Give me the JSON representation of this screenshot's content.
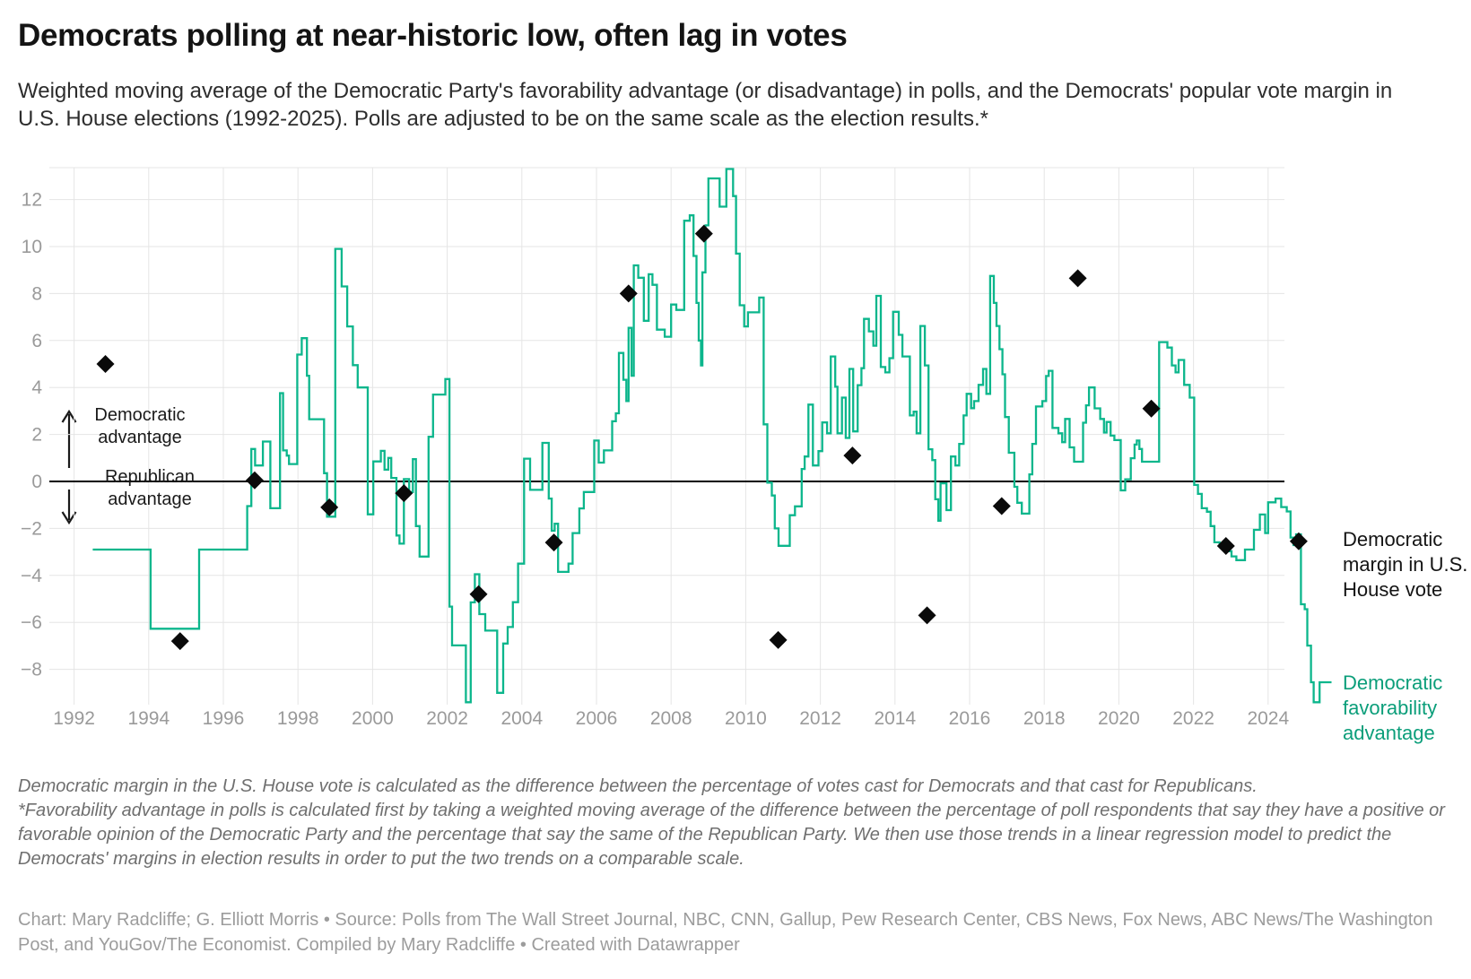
{
  "title": "Democrats polling at near-historic low, often lag in votes",
  "subtitle": "Weighted moving average of the Democratic Party's favorability advantage (or disadvantage) in polls, and the Democrats' popular vote margin in U.S. House elections (1992-2025). Polls are adjusted to be on the same scale as the election results.*",
  "annotations": {
    "democratic": "Democratic advantage",
    "republican": "Republican advantage"
  },
  "series_labels": {
    "house": "Democratic margin in U.S. House vote",
    "favorability": "Democratic favorability advantage"
  },
  "notes": {
    "margin_note": "Democratic margin in the U.S. House vote is calculated as the difference between the percentage of votes cast for Democrats and that cast for Republicans.",
    "favorability_note": "*Favorability advantage in polls is calculated first by taking a weighted moving average of the difference between the percentage of poll respondents that say they have a positive or favorable opinion of the Democratic Party and the percentage that say the same of the Republican Party. We then use those trends in a linear regression model to predict the Democrats' margins in election results in order to put the two trends on a comparable scale.",
    "credit": "Chart: Mary Radcliffe; G. Elliott Morris • Source: Polls from The Wall Street Journal, NBC, CNN, Gallup, Pew Research Center, CBS News, Fox News, ABC News/The Washington Post, and YouGov/The Economist. Compiled by Mary Radcliffe • Created with Datawrapper"
  },
  "colors": {
    "favorability_line": "#0cb68c",
    "favorability_label": "#0b9e7a",
    "house_marker": "#0a0a0a",
    "gridline": "#e5e5e5",
    "zero_line": "#000000",
    "tick_label": "#9a9a9a"
  },
  "chart_data": {
    "type": "line",
    "title": "Democratic favorability advantage vs. House vote margin",
    "xlabel": "",
    "ylabel": "",
    "xlim": [
      1991.3,
      2025.8
    ],
    "ylim": [
      -9.7,
      13.4
    ],
    "grid": true,
    "legend_position": "right-outside",
    "x_ticks": [
      1992,
      1994,
      1996,
      1998,
      2000,
      2002,
      2004,
      2006,
      2008,
      2010,
      2012,
      2014,
      2016,
      2018,
      2020,
      2022,
      2024
    ],
    "y_ticks": [
      -8,
      -6,
      -4,
      -2,
      0,
      2,
      4,
      6,
      8,
      10,
      12
    ],
    "zero_line": true,
    "series": [
      {
        "name": "Democratic favorability advantage",
        "type": "step-line",
        "color": "#0cb68c",
        "x_end": 2025.7,
        "points": [
          [
            1992.5,
            -2.9
          ],
          [
            1994.05,
            -6.27
          ],
          [
            1995.35,
            -2.9
          ],
          [
            1996.64,
            -1.05
          ],
          [
            1996.75,
            1.38
          ],
          [
            1996.85,
            0.68
          ],
          [
            1997.06,
            1.7
          ],
          [
            1997.26,
            -1.14
          ],
          [
            1997.52,
            3.76
          ],
          [
            1997.6,
            1.32
          ],
          [
            1997.7,
            1.1
          ],
          [
            1997.76,
            0.74
          ],
          [
            1997.98,
            5.4
          ],
          [
            1998.1,
            6.1
          ],
          [
            1998.24,
            4.5
          ],
          [
            1998.3,
            2.65
          ],
          [
            1998.7,
            0.35
          ],
          [
            1998.78,
            -1.5
          ],
          [
            1999.0,
            9.9
          ],
          [
            1999.17,
            8.3
          ],
          [
            1999.32,
            6.6
          ],
          [
            1999.47,
            4.95
          ],
          [
            1999.6,
            4.0
          ],
          [
            1999.87,
            -1.4
          ],
          [
            2000.02,
            0.85
          ],
          [
            2000.22,
            1.3
          ],
          [
            2000.32,
            0.5
          ],
          [
            2000.42,
            1.0
          ],
          [
            2000.5,
            0.15
          ],
          [
            2000.64,
            -2.3
          ],
          [
            2000.72,
            -2.65
          ],
          [
            2000.84,
            0.1
          ],
          [
            2000.98,
            -0.45
          ],
          [
            2001.08,
            0.95
          ],
          [
            2001.16,
            -1.9
          ],
          [
            2001.26,
            -3.2
          ],
          [
            2001.5,
            1.9
          ],
          [
            2001.62,
            3.7
          ],
          [
            2001.95,
            4.36
          ],
          [
            2002.06,
            -5.33
          ],
          [
            2002.13,
            -6.98
          ],
          [
            2002.5,
            -9.4
          ],
          [
            2002.63,
            -5.15
          ],
          [
            2002.74,
            -3.95
          ],
          [
            2002.86,
            -5.65
          ],
          [
            2003.02,
            -6.35
          ],
          [
            2003.34,
            -9.0
          ],
          [
            2003.5,
            -6.9
          ],
          [
            2003.62,
            -6.2
          ],
          [
            2003.76,
            -5.14
          ],
          [
            2003.9,
            -3.5
          ],
          [
            2004.06,
            0.97
          ],
          [
            2004.22,
            -0.36
          ],
          [
            2004.55,
            1.64
          ],
          [
            2004.72,
            -0.73
          ],
          [
            2004.8,
            -2.1
          ],
          [
            2004.88,
            -1.8
          ],
          [
            2004.97,
            -3.85
          ],
          [
            2005.25,
            -3.5
          ],
          [
            2005.36,
            -2.2
          ],
          [
            2005.54,
            -1.15
          ],
          [
            2005.66,
            -0.45
          ],
          [
            2005.94,
            1.74
          ],
          [
            2006.06,
            0.8
          ],
          [
            2006.2,
            1.32
          ],
          [
            2006.42,
            2.56
          ],
          [
            2006.52,
            2.9
          ],
          [
            2006.6,
            5.47
          ],
          [
            2006.72,
            4.33
          ],
          [
            2006.8,
            3.42
          ],
          [
            2006.86,
            6.54
          ],
          [
            2006.94,
            4.5
          ],
          [
            2007.0,
            9.2
          ],
          [
            2007.12,
            8.67
          ],
          [
            2007.27,
            6.84
          ],
          [
            2007.4,
            8.82
          ],
          [
            2007.5,
            8.37
          ],
          [
            2007.62,
            6.46
          ],
          [
            2007.83,
            6.16
          ],
          [
            2008.0,
            7.53
          ],
          [
            2008.14,
            7.3
          ],
          [
            2008.35,
            11.1
          ],
          [
            2008.5,
            11.33
          ],
          [
            2008.6,
            9.6
          ],
          [
            2008.68,
            7.6
          ],
          [
            2008.74,
            6.0
          ],
          [
            2008.8,
            4.94
          ],
          [
            2008.84,
            8.9
          ],
          [
            2008.92,
            10.9
          ],
          [
            2009.0,
            12.9
          ],
          [
            2009.3,
            11.7
          ],
          [
            2009.48,
            13.3
          ],
          [
            2009.66,
            12.15
          ],
          [
            2009.74,
            9.7
          ],
          [
            2009.84,
            7.5
          ],
          [
            2009.96,
            6.6
          ],
          [
            2010.06,
            7.2
          ],
          [
            2010.36,
            7.83
          ],
          [
            2010.48,
            2.43
          ],
          [
            2010.58,
            -0.05
          ],
          [
            2010.7,
            -0.6
          ],
          [
            2010.78,
            -2.0
          ],
          [
            2010.88,
            -2.74
          ],
          [
            2011.18,
            -1.44
          ],
          [
            2011.32,
            -1.06
          ],
          [
            2011.5,
            0.53
          ],
          [
            2011.58,
            1.06
          ],
          [
            2011.68,
            3.27
          ],
          [
            2011.8,
            0.68
          ],
          [
            2011.95,
            1.29
          ],
          [
            2012.05,
            2.51
          ],
          [
            2012.18,
            2.05
          ],
          [
            2012.28,
            5.32
          ],
          [
            2012.4,
            4.03
          ],
          [
            2012.46,
            2.05
          ],
          [
            2012.58,
            3.57
          ],
          [
            2012.68,
            1.85
          ],
          [
            2012.78,
            4.79
          ],
          [
            2012.88,
            2.13
          ],
          [
            2013.0,
            4.1
          ],
          [
            2013.1,
            4.82
          ],
          [
            2013.17,
            6.92
          ],
          [
            2013.3,
            6.39
          ],
          [
            2013.42,
            5.78
          ],
          [
            2013.5,
            7.9
          ],
          [
            2013.62,
            4.87
          ],
          [
            2013.74,
            4.64
          ],
          [
            2013.85,
            5.25
          ],
          [
            2013.95,
            7.22
          ],
          [
            2014.1,
            6.24
          ],
          [
            2014.2,
            5.32
          ],
          [
            2014.4,
            2.81
          ],
          [
            2014.5,
            2.97
          ],
          [
            2014.58,
            2.05
          ],
          [
            2014.68,
            6.62
          ],
          [
            2014.8,
            4.94
          ],
          [
            2014.9,
            1.37
          ],
          [
            2015.0,
            0.91
          ],
          [
            2015.08,
            -0.76
          ],
          [
            2015.16,
            -1.67
          ],
          [
            2015.22,
            -0.08
          ],
          [
            2015.38,
            -1.22
          ],
          [
            2015.5,
            1.06
          ],
          [
            2015.62,
            0.68
          ],
          [
            2015.72,
            1.6
          ],
          [
            2015.84,
            2.81
          ],
          [
            2015.92,
            3.73
          ],
          [
            2016.04,
            3.12
          ],
          [
            2016.12,
            3.42
          ],
          [
            2016.24,
            4.11
          ],
          [
            2016.36,
            4.79
          ],
          [
            2016.45,
            3.73
          ],
          [
            2016.55,
            8.75
          ],
          [
            2016.65,
            7.6
          ],
          [
            2016.72,
            6.62
          ],
          [
            2016.8,
            5.63
          ],
          [
            2016.88,
            4.56
          ],
          [
            2016.95,
            2.74
          ],
          [
            2017.05,
            1.22
          ],
          [
            2017.2,
            -0.23
          ],
          [
            2017.28,
            -0.91
          ],
          [
            2017.4,
            -1.37
          ],
          [
            2017.6,
            0.3
          ],
          [
            2017.68,
            1.6
          ],
          [
            2017.78,
            3.19
          ],
          [
            2017.95,
            3.42
          ],
          [
            2018.05,
            4.49
          ],
          [
            2018.12,
            4.71
          ],
          [
            2018.22,
            2.28
          ],
          [
            2018.38,
            2.05
          ],
          [
            2018.48,
            1.67
          ],
          [
            2018.56,
            2.66
          ],
          [
            2018.68,
            1.45
          ],
          [
            2018.8,
            0.84
          ],
          [
            2019.04,
            2.5
          ],
          [
            2019.12,
            3.24
          ],
          [
            2019.2,
            4.0
          ],
          [
            2019.35,
            3.11
          ],
          [
            2019.5,
            2.66
          ],
          [
            2019.6,
            2.08
          ],
          [
            2019.67,
            2.53
          ],
          [
            2019.78,
            1.95
          ],
          [
            2019.88,
            1.76
          ],
          [
            2020.05,
            -0.38
          ],
          [
            2020.17,
            0.09
          ],
          [
            2020.32,
            0.99
          ],
          [
            2020.42,
            1.57
          ],
          [
            2020.48,
            1.74
          ],
          [
            2020.55,
            1.38
          ],
          [
            2020.62,
            0.84
          ],
          [
            2021.08,
            5.93
          ],
          [
            2021.3,
            5.7
          ],
          [
            2021.42,
            4.94
          ],
          [
            2021.52,
            4.64
          ],
          [
            2021.6,
            5.17
          ],
          [
            2021.75,
            4.11
          ],
          [
            2021.9,
            3.57
          ],
          [
            2022.02,
            -0.15
          ],
          [
            2022.12,
            -0.53
          ],
          [
            2022.22,
            -1.14
          ],
          [
            2022.36,
            -1.29
          ],
          [
            2022.46,
            -1.9
          ],
          [
            2022.56,
            -2.59
          ],
          [
            2022.7,
            -2.74
          ],
          [
            2022.85,
            -2.97
          ],
          [
            2023.02,
            -3.19
          ],
          [
            2023.15,
            -3.35
          ],
          [
            2023.38,
            -2.9
          ],
          [
            2023.62,
            -2.06
          ],
          [
            2023.78,
            -1.41
          ],
          [
            2023.92,
            -2.2
          ],
          [
            2024.0,
            -0.89
          ],
          [
            2024.2,
            -0.73
          ],
          [
            2024.35,
            -1.09
          ],
          [
            2024.5,
            -1.28
          ],
          [
            2024.6,
            -2.39
          ],
          [
            2024.68,
            -2.71
          ],
          [
            2024.75,
            -2.25
          ],
          [
            2024.88,
            -5.23
          ],
          [
            2024.98,
            -5.44
          ],
          [
            2025.05,
            -6.99
          ],
          [
            2025.15,
            -8.55
          ],
          [
            2025.22,
            -9.4
          ],
          [
            2025.38,
            -8.55
          ]
        ]
      },
      {
        "name": "Democratic margin in U.S. House vote",
        "type": "scatter-diamond",
        "color": "#0a0a0a",
        "points": [
          [
            1992.84,
            5.0
          ],
          [
            1994.84,
            -6.8
          ],
          [
            1996.84,
            0.05
          ],
          [
            1998.84,
            -1.1
          ],
          [
            2000.84,
            -0.5
          ],
          [
            2002.84,
            -4.8
          ],
          [
            2004.86,
            -2.6
          ],
          [
            2006.86,
            8.0
          ],
          [
            2008.88,
            10.55
          ],
          [
            2010.87,
            -6.75
          ],
          [
            2012.86,
            1.1
          ],
          [
            2014.86,
            -5.7
          ],
          [
            2016.86,
            -1.05
          ],
          [
            2018.9,
            8.65
          ],
          [
            2020.87,
            3.1
          ],
          [
            2022.87,
            -2.75
          ],
          [
            2024.82,
            -2.55
          ]
        ]
      }
    ]
  }
}
